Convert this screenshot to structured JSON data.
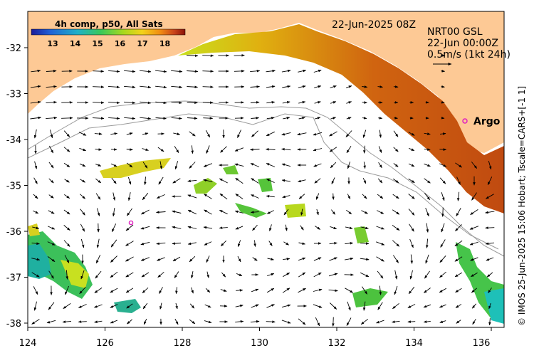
{
  "legend": {
    "title": "4h comp, p50, All Sats",
    "ticks": [
      "13",
      "14",
      "15",
      "16",
      "17",
      "18"
    ],
    "colors": [
      "#1a1a9a",
      "#1f5fd6",
      "#1fb0c8",
      "#39c85a",
      "#a9d81c",
      "#f2d21a",
      "#f08a12",
      "#c8421a",
      "#8a1208"
    ]
  },
  "header": {
    "date": "22-Jun-2025 08Z",
    "product": "NRT00 GSL",
    "run": "22-Jun 00:00Z",
    "arrow_scale": "0.5m/s (1kt 24h)"
  },
  "marker": {
    "label": "Argo",
    "color": "#e020c0"
  },
  "credit": "© IMOS 25-Jun-2025 15:06 Hobart; Tscale=CARS+[-1 1]",
  "axes": {
    "x_ticks": [
      "124",
      "126",
      "128",
      "130",
      "132",
      "134",
      "136"
    ],
    "y_ticks": [
      "-32",
      "-33",
      "-34",
      "-35",
      "-36",
      "-37",
      "-38"
    ]
  },
  "colors": {
    "land": "#fdc995",
    "sea": "#ffffff",
    "contour": "#9a9a9a"
  }
}
